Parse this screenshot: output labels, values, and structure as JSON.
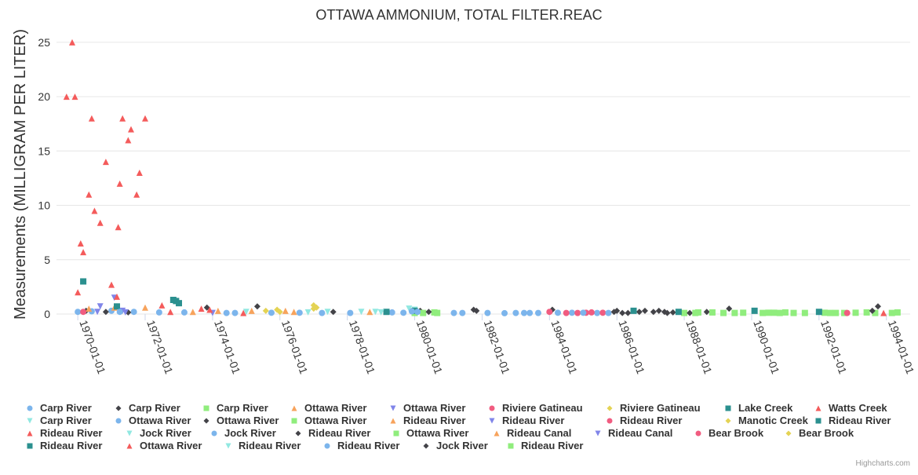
{
  "chart_data": {
    "type": "scatter",
    "title": "OTTAWA AMMONIUM, TOTAL FILTER.REAC",
    "ylabel": "Measurements (MILLIGRAM PER LITER)",
    "xlabel": "",
    "x_axis_type": "date",
    "xlim": [
      "1969-05-15",
      "1994-09-15"
    ],
    "ylim": [
      0,
      26
    ],
    "y_ticks": [
      0,
      5,
      10,
      15,
      20,
      25
    ],
    "x_ticks": [
      "1970-01-01",
      "1972-01-01",
      "1974-01-01",
      "1976-01-01",
      "1978-01-01",
      "1980-01-01",
      "1982-01-01",
      "1984-01-01",
      "1986-01-01",
      "1988-01-01",
      "1990-01-01",
      "1992-01-01",
      "1994-01-01"
    ],
    "grid": "horizontal",
    "legend_position": "bottom",
    "credits": "Highcharts.com",
    "series": [
      {
        "name": "Carp River",
        "color": "#7cb5ec",
        "symbol": "circle",
        "points": [
          [
            "1970-01-01",
            0.2
          ],
          [
            "1970-06-01",
            0.25
          ],
          [
            "1971-01-01",
            0.3
          ],
          [
            "1971-09-01",
            0.2
          ],
          [
            "1973-03-01",
            0.15
          ],
          [
            "1974-06-01",
            0.1
          ],
          [
            "1975-10-01",
            0.12
          ],
          [
            "1977-04-01",
            0.1
          ],
          [
            "1979-05-01",
            0.15
          ],
          [
            "1981-06-01",
            0.1
          ],
          [
            "1982-09-01",
            0.08
          ],
          [
            "1983-06-01",
            0.1
          ],
          [
            "1984-09-01",
            0.12
          ],
          [
            "1985-06-01",
            0.1
          ]
        ]
      },
      {
        "name": "Carp River",
        "color": "#434348",
        "symbol": "diamond",
        "points": [
          [
            "1970-04-01",
            0.3
          ],
          [
            "1970-11-01",
            0.2
          ],
          [
            "1971-07-01",
            0.15
          ],
          [
            "1973-11-01",
            0.6
          ],
          [
            "1975-05-01",
            0.7
          ],
          [
            "1977-08-01",
            0.2
          ],
          [
            "1980-03-01",
            0.3
          ],
          [
            "1981-10-01",
            0.4
          ],
          [
            "1984-02-01",
            0.4
          ],
          [
            "1986-01-01",
            0.3
          ],
          [
            "1986-09-01",
            0.2
          ],
          [
            "1987-06-01",
            0.2
          ],
          [
            "1989-05-01",
            0.5
          ],
          [
            "1993-10-01",
            0.7
          ]
        ]
      },
      {
        "name": "Carp River",
        "color": "#90ed7d",
        "symbol": "square",
        "points": [
          [
            "1980-01-01",
            0.1
          ],
          [
            "1980-08-01",
            0.15
          ],
          [
            "1988-01-01",
            0.1
          ],
          [
            "1988-06-01",
            0.15
          ],
          [
            "1989-03-01",
            0.1
          ],
          [
            "1989-10-01",
            0.12
          ],
          [
            "1990-05-01",
            0.1
          ],
          [
            "1991-01-01",
            0.15
          ],
          [
            "1991-08-01",
            0.1
          ],
          [
            "1992-03-01",
            0.12
          ],
          [
            "1992-10-01",
            0.1
          ],
          [
            "1993-06-01",
            0.15
          ],
          [
            "1994-03-01",
            0.1
          ]
        ]
      },
      {
        "name": "Ottawa River",
        "color": "#f7a35c",
        "symbol": "triangle",
        "points": [
          [
            "1970-05-01",
            0.5
          ],
          [
            "1971-02-01",
            0.6
          ],
          [
            "1976-03-01",
            0.3
          ],
          [
            "1978-09-01",
            0.2
          ]
        ]
      },
      {
        "name": "Ottawa River",
        "color": "#8085e9",
        "symbol": "triangle-down",
        "points": [
          [
            "1970-09-01",
            0.7
          ],
          [
            "1971-02-01",
            1.5
          ],
          [
            "1971-05-01",
            0.3
          ]
        ]
      },
      {
        "name": "Riviere Gatineau",
        "color": "#f15c80",
        "symbol": "circle",
        "points": [
          [
            "1970-03-01",
            0.2
          ],
          [
            "1984-07-01",
            0.1
          ],
          [
            "1985-02-01",
            0.12
          ]
        ]
      },
      {
        "name": "Riviere Gatineau",
        "color": "#e4d354",
        "symbol": "diamond",
        "points": [
          [
            "1977-01-01",
            0.8
          ],
          [
            "1977-02-01",
            0.6
          ],
          [
            "1975-12-01",
            0.4
          ]
        ]
      },
      {
        "name": "Lake Creek",
        "color": "#2b908f",
        "symbol": "square",
        "points": [
          [
            "1970-03-01",
            3.0
          ],
          [
            "1971-03-01",
            0.7
          ],
          [
            "1972-12-01",
            1.2
          ],
          [
            "1973-01-01",
            1.0
          ]
        ]
      },
      {
        "name": "Watts Creek",
        "color": "#f45b5b",
        "symbol": "triangle",
        "points": [
          [
            "1969-09-01",
            20
          ],
          [
            "1969-11-01",
            25
          ],
          [
            "1969-12-01",
            20
          ],
          [
            "1970-02-01",
            6.5
          ],
          [
            "1970-03-01",
            5.7
          ],
          [
            "1970-05-01",
            11
          ],
          [
            "1970-06-01",
            18
          ],
          [
            "1970-07-01",
            9.5
          ],
          [
            "1970-09-01",
            8.4
          ],
          [
            "1970-11-01",
            14
          ],
          [
            "1971-01-01",
            2.7
          ],
          [
            "1971-03-01",
            1.6
          ],
          [
            "1971-03-15",
            8
          ],
          [
            "1971-04-01",
            12
          ],
          [
            "1971-05-01",
            18
          ],
          [
            "1971-07-01",
            16
          ],
          [
            "1971-08-01",
            17
          ],
          [
            "1971-10-01",
            11
          ],
          [
            "1971-11-01",
            13
          ],
          [
            "1972-01-01",
            18
          ],
          [
            "1972-07-01",
            0.8
          ],
          [
            "1970-01-01",
            2.0
          ]
        ]
      },
      {
        "name": "Carp River",
        "color": "#91e8e1",
        "symbol": "triangle-down",
        "points": [
          [
            "1979-11-01",
            0.5
          ],
          [
            "1980-01-01",
            0.4
          ],
          [
            "1978-06-01",
            0.2
          ]
        ]
      },
      {
        "name": "Ottawa River",
        "color": "#7cb5ec",
        "symbol": "circle",
        "points": [
          [
            "1971-04-01",
            0.2
          ],
          [
            "1972-06-01",
            0.15
          ],
          [
            "1974-09-01",
            0.1
          ],
          [
            "1976-08-01",
            0.12
          ],
          [
            "1978-02-01",
            0.1
          ],
          [
            "1979-09-01",
            0.12
          ],
          [
            "1981-03-01",
            0.1
          ],
          [
            "1983-01-01",
            0.1
          ],
          [
            "1984-04-01",
            0.12
          ]
        ]
      },
      {
        "name": "Ottawa River",
        "color": "#434348",
        "symbol": "diamond",
        "points": [
          [
            "1986-05-01",
            0.1
          ],
          [
            "1986-11-01",
            0.3
          ],
          [
            "1987-02-01",
            0.2
          ],
          [
            "1987-09-01",
            0.15
          ],
          [
            "1988-03-01",
            0.1
          ]
        ]
      },
      {
        "name": "Ottawa River",
        "color": "#90ed7d",
        "symbol": "square",
        "points": [
          [
            "1980-04-01",
            0.1
          ],
          [
            "1989-07-01",
            0.1
          ],
          [
            "1990-09-01",
            0.12
          ],
          [
            "1991-04-01",
            0.1
          ],
          [
            "1992-07-01",
            0.1
          ],
          [
            "1993-02-01",
            0.12
          ]
        ]
      },
      {
        "name": "Rideau River",
        "color": "#f7a35c",
        "symbol": "triangle",
        "points": [
          [
            "1972-01-01",
            0.6
          ],
          [
            "1974-03-01",
            0.3
          ],
          [
            "1976-06-01",
            0.2
          ]
        ]
      },
      {
        "name": "Rideau River",
        "color": "#8085e9",
        "symbol": "triangle-down",
        "points": [
          [
            "1970-08-01",
            0.2
          ],
          [
            "1971-06-01",
            0.15
          ]
        ]
      },
      {
        "name": "Rideau River",
        "color": "#f15c80",
        "symbol": "circle",
        "points": [
          [
            "1984-11-01",
            0.1
          ],
          [
            "1985-08-01",
            0.12
          ],
          [
            "1992-11-01",
            0.1
          ]
        ]
      },
      {
        "name": "Manotic Creek",
        "color": "#e4d354",
        "symbol": "diamond",
        "points": [
          [
            "1975-08-01",
            0.3
          ],
          [
            "1977-01-01",
            0.5
          ]
        ]
      },
      {
        "name": "Rideau River",
        "color": "#2b908f",
        "symbol": "square",
        "points": [
          [
            "1979-03-01",
            0.2
          ],
          [
            "1986-07-01",
            0.3
          ],
          [
            "1987-11-01",
            0.2
          ],
          [
            "1990-02-01",
            0.3
          ],
          [
            "1992-01-01",
            0.2
          ]
        ]
      },
      {
        "name": "Rideau River",
        "color": "#f45b5b",
        "symbol": "triangle",
        "points": [
          [
            "1972-10-01",
            0.2
          ],
          [
            "1973-09-01",
            0.5
          ],
          [
            "1974-12-01",
            0.1
          ]
        ]
      },
      {
        "name": "Jock River",
        "color": "#91e8e1",
        "symbol": "triangle-down",
        "points": [
          [
            "1975-01-01",
            0.2
          ],
          [
            "1976-11-01",
            0.15
          ],
          [
            "1978-11-01",
            0.2
          ]
        ]
      },
      {
        "name": "Jock River",
        "color": "#7cb5ec",
        "symbol": "circle",
        "points": [
          [
            "1982-03-01",
            0.1
          ],
          [
            "1983-09-01",
            0.1
          ],
          [
            "1985-10-01",
            0.1
          ]
        ]
      },
      {
        "name": "Rideau River",
        "color": "#434348",
        "symbol": "diamond",
        "points": [
          [
            "1980-06-01",
            0.2
          ],
          [
            "1985-12-01",
            0.2
          ],
          [
            "1987-04-01",
            0.3
          ],
          [
            "1988-09-01",
            0.2
          ]
        ]
      },
      {
        "name": "Ottawa River",
        "color": "#90ed7d",
        "symbol": "square",
        "points": [
          [
            "1988-11-01",
            0.15
          ],
          [
            "1990-11-01",
            0.1
          ],
          [
            "1993-09-01",
            0.1
          ]
        ]
      },
      {
        "name": "Rideau Canal",
        "color": "#f7a35c",
        "symbol": "triangle",
        "points": [
          [
            "1973-06-01",
            0.2
          ],
          [
            "1975-03-01",
            0.3
          ]
        ]
      },
      {
        "name": "Rideau Canal",
        "color": "#8085e9",
        "symbol": "triangle-down",
        "points": [
          [
            "1974-01-01",
            0.1
          ]
        ]
      },
      {
        "name": "Bear Brook",
        "color": "#f15c80",
        "symbol": "circle",
        "points": [
          [
            "1984-01-01",
            0.2
          ],
          [
            "1985-04-01",
            0.15
          ]
        ]
      },
      {
        "name": "Bear Brook",
        "color": "#e4d354",
        "symbol": "diamond",
        "points": [
          [
            "1976-01-01",
            0.2
          ]
        ]
      },
      {
        "name": "Rideau River",
        "color": "#2b908f",
        "symbol": "square",
        "points": [
          [
            "1972-11-01",
            1.3
          ],
          [
            "1980-01-01",
            0.3
          ]
        ]
      },
      {
        "name": "Ottawa River",
        "color": "#f45b5b",
        "symbol": "triangle",
        "points": [
          [
            "1973-12-01",
            0.4
          ],
          [
            "1993-12-01",
            0.1
          ]
        ]
      },
      {
        "name": "Rideau River",
        "color": "#91e8e1",
        "symbol": "triangle-down",
        "points": [
          [
            "1977-06-01",
            0.2
          ],
          [
            "1979-01-01",
            0.15
          ]
        ]
      },
      {
        "name": "Rideau River",
        "color": "#7cb5ec",
        "symbol": "circle",
        "points": [
          [
            "1979-12-01",
            0.25
          ],
          [
            "1980-02-01",
            0.2
          ],
          [
            "1983-04-01",
            0.1
          ],
          [
            "1985-01-01",
            0.12
          ]
        ]
      },
      {
        "name": "Jock River",
        "color": "#434348",
        "symbol": "diamond",
        "points": [
          [
            "1981-11-01",
            0.3
          ],
          [
            "1986-03-01",
            0.1
          ],
          [
            "1987-07-01",
            0.1
          ],
          [
            "1993-08-01",
            0.3
          ]
        ]
      },
      {
        "name": "Rideau River",
        "color": "#90ed7d",
        "symbol": "square",
        "points": [
          [
            "1980-09-01",
            0.1
          ],
          [
            "1988-05-01",
            0.1
          ],
          [
            "1990-07-01",
            0.12
          ],
          [
            "1992-05-01",
            0.1
          ],
          [
            "1994-05-01",
            0.15
          ]
        ]
      }
    ]
  }
}
